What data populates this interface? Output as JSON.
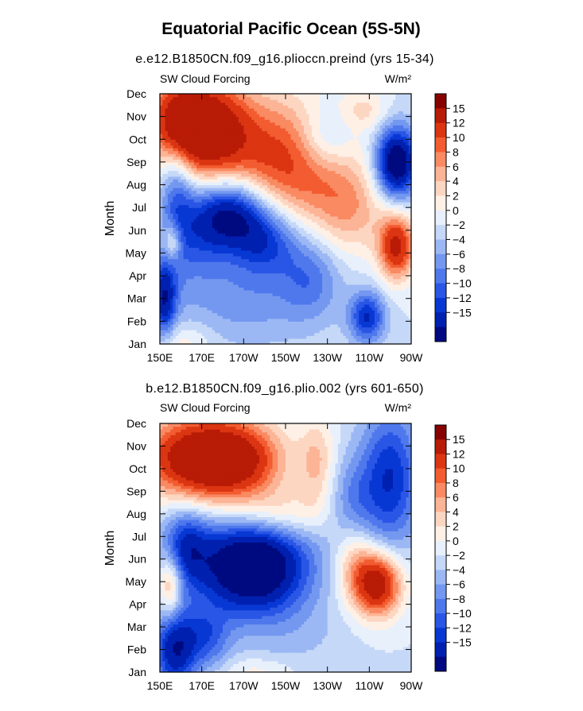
{
  "title": "Equatorial Pacific Ocean (5S-5N)",
  "chart_data": [
    {
      "type": "heatmap",
      "subtitle": "e.e12.B1850CN.f09_g16.plioccn.preind (yrs 15-34)",
      "left_label": "SW Cloud Forcing",
      "right_label": "W/m²",
      "ylabel": "Month",
      "x_ticks": [
        "150E",
        "170E",
        "170W",
        "150W",
        "130W",
        "110W",
        "90W"
      ],
      "x_values": [
        150,
        170,
        190,
        210,
        230,
        250,
        270
      ],
      "y_ticks": [
        "Jan",
        "Feb",
        "Mar",
        "Apr",
        "May",
        "Jun",
        "Jul",
        "Aug",
        "Sep",
        "Oct",
        "Nov",
        "Dec"
      ],
      "xlim": [
        150,
        270
      ],
      "ylim": [
        1,
        12
      ],
      "blobs": [
        {
          "x": 158,
          "y": 10.8,
          "sx": 9,
          "sy": 1.3,
          "a": 16
        },
        {
          "x": 173,
          "y": 10.6,
          "sx": 12,
          "sy": 1.5,
          "a": 14
        },
        {
          "x": 195,
          "y": 9.8,
          "sx": 25,
          "sy": 1.8,
          "a": 10
        },
        {
          "x": 220,
          "y": 8.3,
          "sx": 18,
          "sy": 1.6,
          "a": 7
        },
        {
          "x": 241,
          "y": 6.8,
          "sx": 12,
          "sy": 1.4,
          "a": 6
        },
        {
          "x": 263,
          "y": 5.3,
          "sx": 6,
          "sy": 1.0,
          "a": 16
        },
        {
          "x": 248,
          "y": 11.3,
          "sx": 8,
          "sy": 0.6,
          "a": 4
        },
        {
          "x": 229,
          "y": 10.0,
          "sx": 9,
          "sy": 1.0,
          "a": -6
        },
        {
          "x": 263,
          "y": 9.0,
          "sx": 7,
          "sy": 1.1,
          "a": -20
        },
        {
          "x": 158,
          "y": 7.8,
          "sx": 6,
          "sy": 2.5,
          "a": -9
        },
        {
          "x": 184,
          "y": 6.8,
          "sx": 11,
          "sy": 1.1,
          "a": -15
        },
        {
          "x": 200,
          "y": 5.6,
          "sx": 11,
          "sy": 1.1,
          "a": -10
        },
        {
          "x": 170,
          "y": 6.0,
          "sx": 9,
          "sy": 1.4,
          "a": -7
        },
        {
          "x": 152,
          "y": 3.0,
          "sx": 4,
          "sy": 1.2,
          "a": -13
        },
        {
          "x": 190,
          "y": 3.0,
          "sx": 25,
          "sy": 1.5,
          "a": -5
        },
        {
          "x": 222,
          "y": 4.0,
          "sx": 10,
          "sy": 1.3,
          "a": -6
        },
        {
          "x": 249,
          "y": 2.2,
          "sx": 6,
          "sy": 0.8,
          "a": -12
        },
        {
          "x": 156,
          "y": 5.5,
          "sx": 3,
          "sy": 0.6,
          "a": 8
        },
        {
          "x": 160,
          "y": 1.1,
          "sx": 10,
          "sy": 0.6,
          "a": 4
        }
      ]
    },
    {
      "type": "heatmap",
      "subtitle": "b.e12.B1850CN.f09_g16.plio.002 (yrs 601-650)",
      "left_label": "SW Cloud Forcing",
      "right_label": "W/m²",
      "ylabel": "Month",
      "x_ticks": [
        "150E",
        "170E",
        "170W",
        "150W",
        "130W",
        "110W",
        "90W"
      ],
      "x_values": [
        150,
        170,
        190,
        210,
        230,
        250,
        270
      ],
      "y_ticks": [
        "Jan",
        "Feb",
        "Mar",
        "Apr",
        "May",
        "Jun",
        "Jul",
        "Aug",
        "Sep",
        "Oct",
        "Nov",
        "Dec"
      ],
      "xlim": [
        150,
        270
      ],
      "ylim": [
        1,
        12
      ],
      "blobs": [
        {
          "x": 170,
          "y": 10.5,
          "sx": 20,
          "sy": 1.3,
          "a": 20
        },
        {
          "x": 190,
          "y": 10.3,
          "sx": 15,
          "sy": 1.2,
          "a": 8
        },
        {
          "x": 225,
          "y": 10.3,
          "sx": 6,
          "sy": 1.4,
          "a": 6
        },
        {
          "x": 206,
          "y": 8.0,
          "sx": 16,
          "sy": 0.8,
          "a": 6
        },
        {
          "x": 254,
          "y": 4.9,
          "sx": 8,
          "sy": 1.0,
          "a": 18
        },
        {
          "x": 243,
          "y": 6.0,
          "sx": 7,
          "sy": 1.3,
          "a": 7
        },
        {
          "x": 155,
          "y": 4.9,
          "sx": 4,
          "sy": 1.0,
          "a": 10
        },
        {
          "x": 260,
          "y": 9.6,
          "sx": 10,
          "sy": 2.2,
          "a": -12
        },
        {
          "x": 242,
          "y": 8.3,
          "sx": 8,
          "sy": 1.5,
          "a": -6
        },
        {
          "x": 194,
          "y": 5.7,
          "sx": 19,
          "sy": 1.5,
          "a": -22
        },
        {
          "x": 162,
          "y": 6.6,
          "sx": 8,
          "sy": 1.2,
          "a": -10
        },
        {
          "x": 157,
          "y": 2.0,
          "sx": 7,
          "sy": 1.3,
          "a": -14
        },
        {
          "x": 172,
          "y": 2.5,
          "sx": 8,
          "sy": 1.0,
          "a": -8
        },
        {
          "x": 215,
          "y": 2.6,
          "sx": 20,
          "sy": 1.2,
          "a": -2
        },
        {
          "x": 196,
          "y": 1.1,
          "sx": 12,
          "sy": 0.4,
          "a": 3
        }
      ]
    }
  ],
  "colorbar": {
    "labels": [
      "15",
      "12",
      "10",
      "8",
      "6",
      "4",
      "2",
      "0",
      "−2",
      "−4",
      "−6",
      "−8",
      "−10",
      "−12",
      "−15"
    ],
    "levels": [
      -15,
      -12,
      -10,
      -8,
      -6,
      -4,
      -2,
      0,
      2,
      4,
      6,
      8,
      10,
      12,
      15
    ],
    "colors": [
      "#000a80",
      "#0020b0",
      "#0838d4",
      "#2a56e6",
      "#4f78ec",
      "#7498f0",
      "#9cb8f4",
      "#c6d8f8",
      "#e8f0fc",
      "#fff0e6",
      "#fdd6c2",
      "#fcb496",
      "#f98a62",
      "#f35c30",
      "#db3512",
      "#b81b06",
      "#850200"
    ]
  }
}
